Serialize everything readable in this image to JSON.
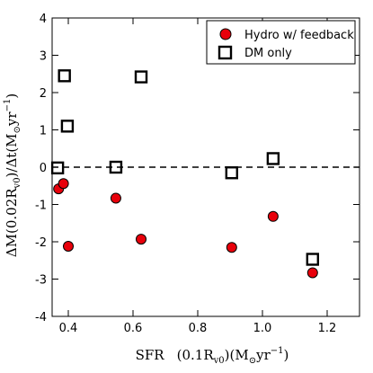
{
  "chart_data": {
    "type": "scatter",
    "xlabel": "SFR   (0.1R_v0)(M_⊙yr⁻¹)",
    "ylabel": "ΔM(0.02R_v0)/Δt(M_⊙yr⁻¹)",
    "xlim": [
      0.35,
      1.3
    ],
    "ylim": [
      -4,
      4
    ],
    "xticks": [
      0.4,
      0.6,
      0.8,
      1.0,
      1.2
    ],
    "xtick_labels": [
      "0.4",
      "0.6",
      "0.8",
      "1.0",
      "1.2"
    ],
    "yticks": [
      -4,
      -3,
      -2,
      -1,
      0,
      1,
      2,
      3,
      4
    ],
    "ytick_labels": [
      "-4",
      "-3",
      "-2",
      "-1",
      "0",
      "1",
      "2",
      "3",
      "4"
    ],
    "grid": false,
    "legend_position": "top-right",
    "reference_line": {
      "y": 0,
      "style": "dashed",
      "color": "#000000"
    },
    "series": [
      {
        "name": "Hydro w/ feedback",
        "marker": "circle",
        "color": "#e8000b",
        "points": [
          {
            "x": 0.37,
            "y": -0.58
          },
          {
            "x": 0.385,
            "y": -0.44
          },
          {
            "x": 0.4,
            "y": -2.12
          },
          {
            "x": 0.547,
            "y": -0.83
          },
          {
            "x": 0.625,
            "y": -1.93
          },
          {
            "x": 0.905,
            "y": -2.15
          },
          {
            "x": 1.033,
            "y": -1.32
          },
          {
            "x": 1.155,
            "y": -2.83
          }
        ]
      },
      {
        "name": "DM only",
        "marker": "square",
        "color": "#000000",
        "points": [
          {
            "x": 0.367,
            "y": -0.02
          },
          {
            "x": 0.388,
            "y": 2.45
          },
          {
            "x": 0.397,
            "y": 1.1
          },
          {
            "x": 0.547,
            "y": 0.0
          },
          {
            "x": 0.625,
            "y": 2.42
          },
          {
            "x": 0.905,
            "y": -0.15
          },
          {
            "x": 1.033,
            "y": 0.23
          },
          {
            "x": 1.155,
            "y": -2.47
          }
        ]
      }
    ]
  }
}
